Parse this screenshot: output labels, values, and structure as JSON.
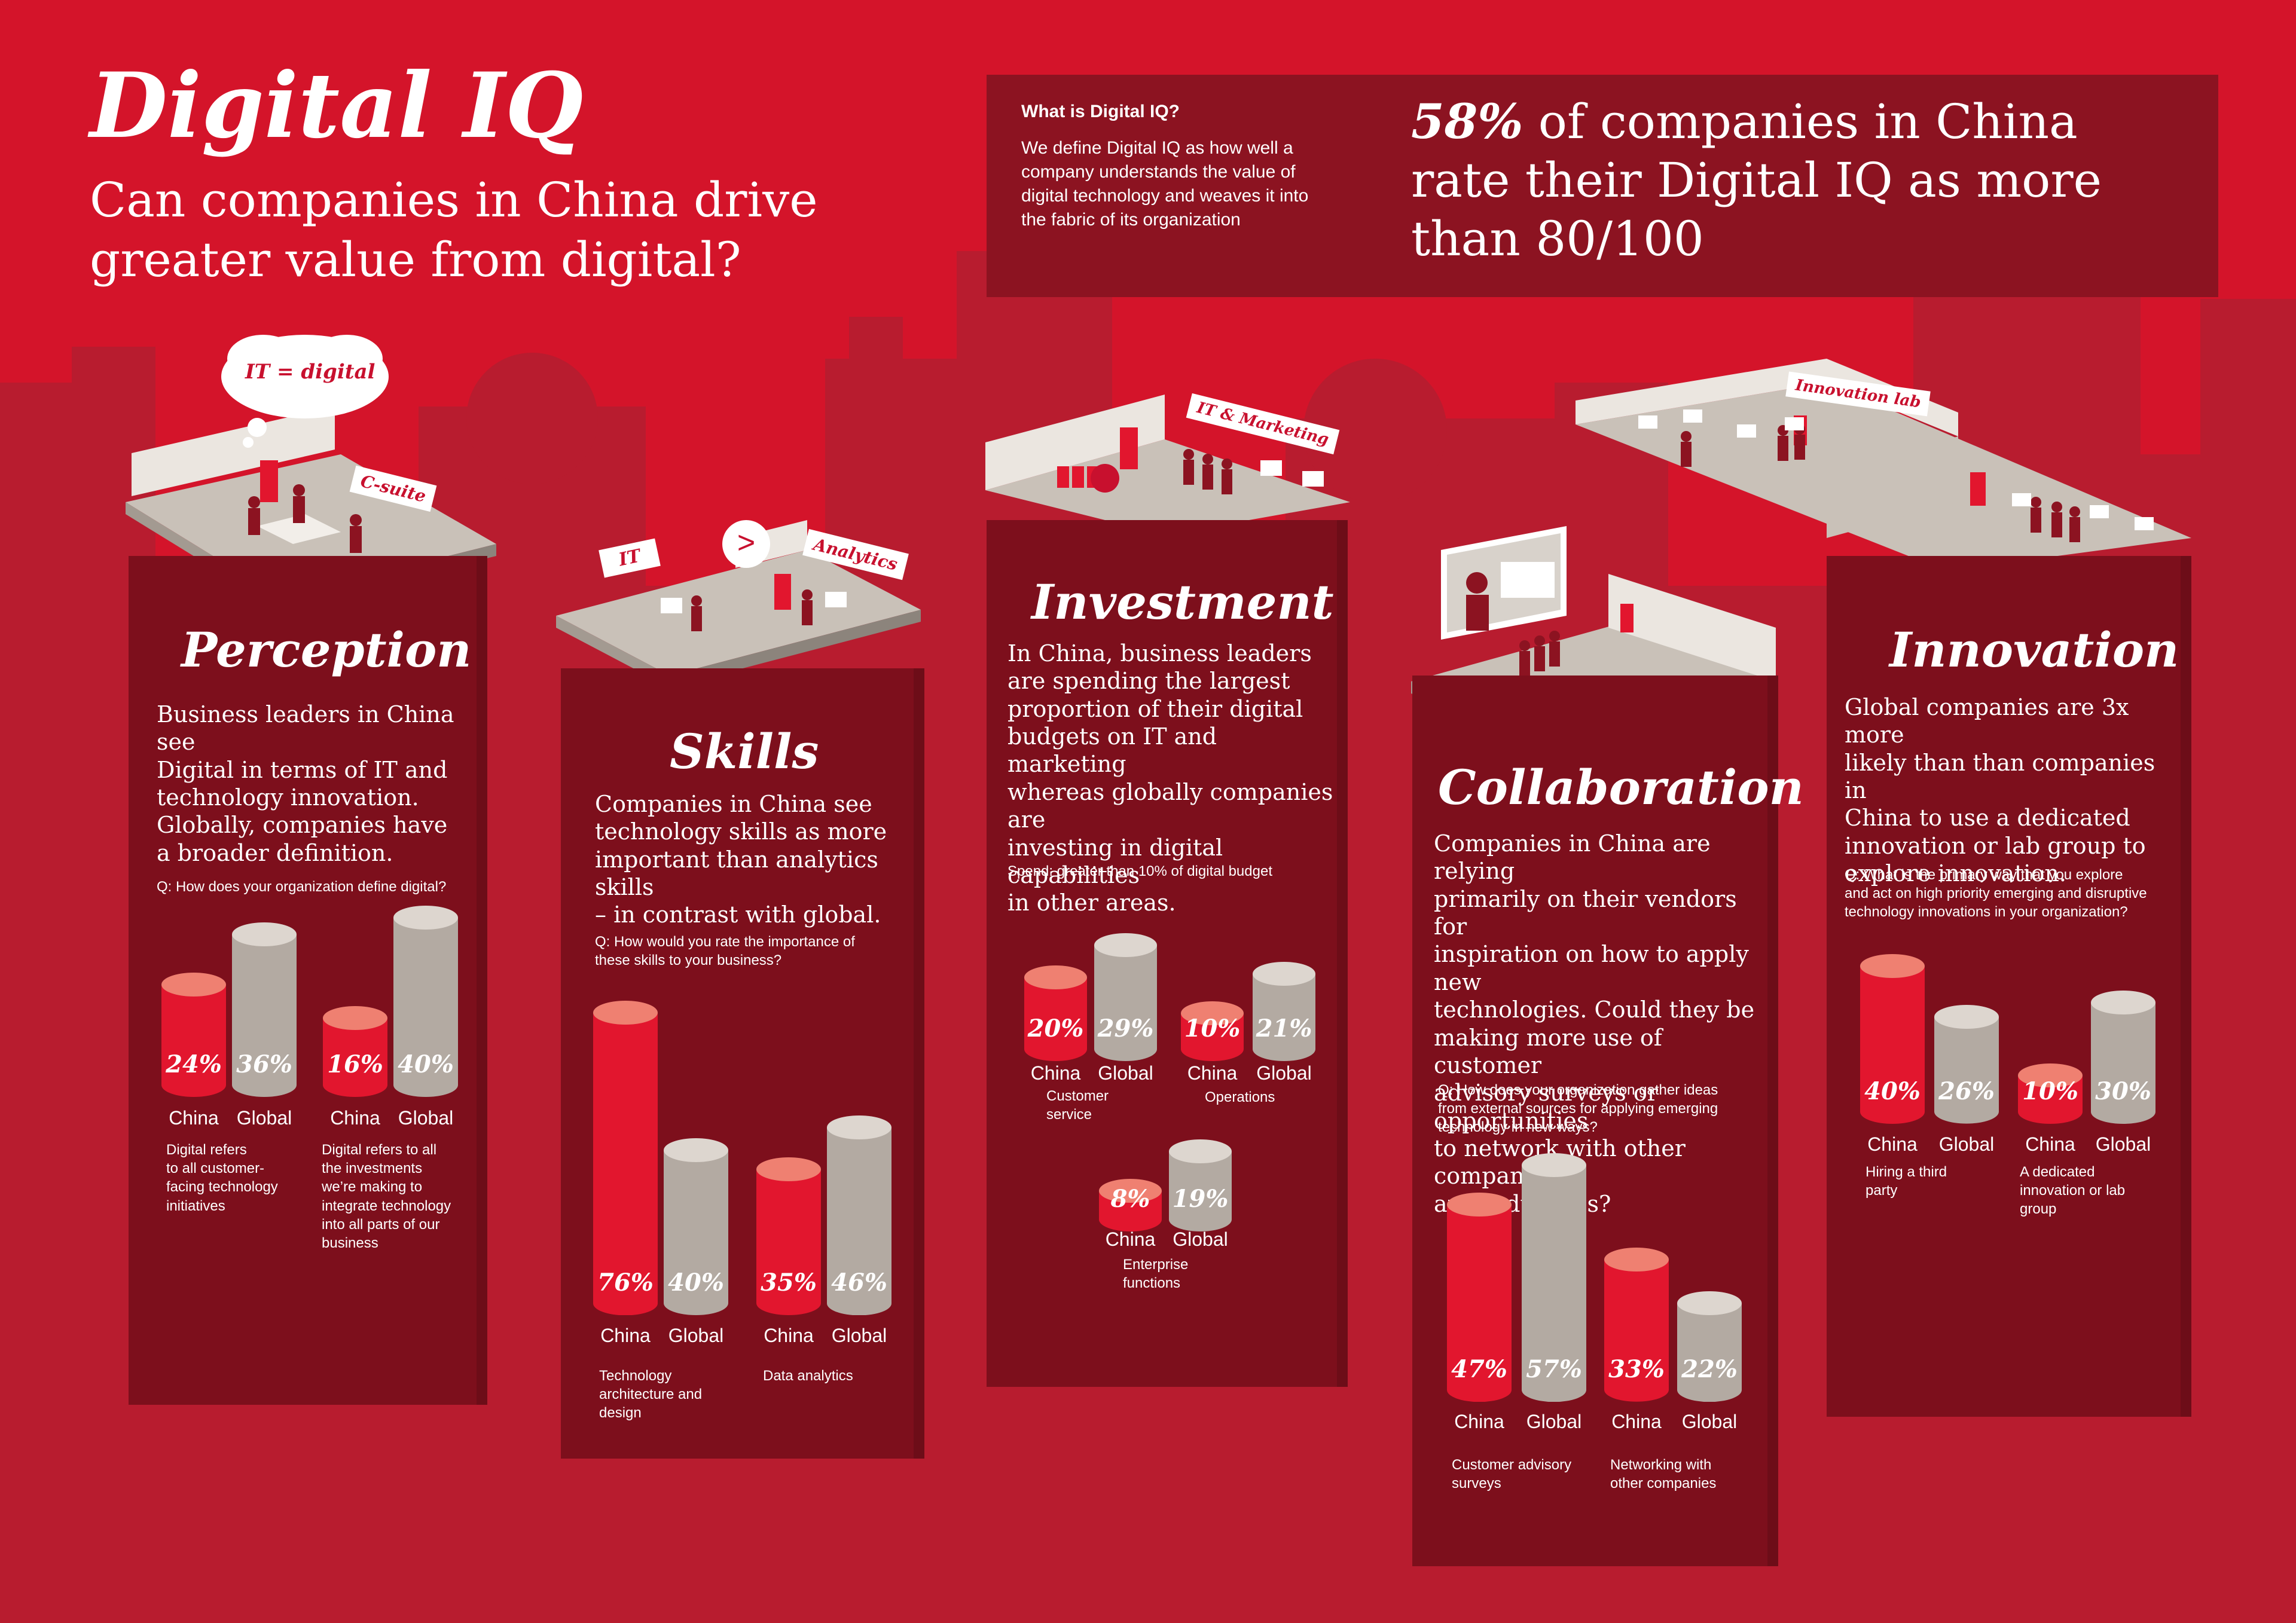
{
  "header": {
    "title": "Digital IQ",
    "subtitle_line1": "Can companies in China drive",
    "subtitle_line2": "greater value from digital?"
  },
  "definition": {
    "heading": "What is Digital IQ?",
    "line1": "We define Digital IQ as how well a",
    "line2": "company understands the value of",
    "line3": "digital technology and weaves it into",
    "line4": "the fabric of its organization"
  },
  "stat": {
    "number": "58%",
    "line1_rest": " of companies in China",
    "line2": "rate their Digital IQ as more",
    "line3": "than 80/100"
  },
  "colors": {
    "background": "#d4142a",
    "china": "#e2162e",
    "china_top": "#ef8071",
    "global": "#b3aaa2",
    "global_top": "#ddd6cf",
    "panel": "#7d0f1c",
    "dark_box": "#8c1321"
  },
  "illustrations": {
    "perception_bubble": "IT = digital",
    "perception_sign": "C-suite",
    "skills_sign_it": "IT",
    "skills_sign_gt": ">",
    "skills_sign_analytics": "Analytics",
    "investment_sign": "IT & Marketing",
    "innovation_sign": "Innovation lab"
  },
  "sections": {
    "perception": {
      "title": "Perception",
      "body": [
        "Business leaders in China see",
        "Digital in terms of IT and",
        "technology innovation.",
        "Globally, companies have",
        "a broader definition."
      ],
      "question": "Q: How does your organization define digital?",
      "caption1": [
        "Digital refers",
        "to all customer-",
        "facing technology",
        "initiatives"
      ],
      "caption2": [
        "Digital refers to all",
        "the investments",
        "we’re making to",
        "integrate technology",
        "into all parts of our",
        "business"
      ]
    },
    "skills": {
      "title": "Skills",
      "body": [
        "Companies in China see",
        "technology skills as more",
        "important than analytics skills",
        "– in contrast with global."
      ],
      "question": [
        "Q: How would you rate the importance of",
        "these skills to your business?"
      ],
      "caption1": [
        "Technology",
        "architecture and",
        "design"
      ],
      "caption2": [
        "Data analytics"
      ]
    },
    "investment": {
      "title": "Investment",
      "body": [
        "In China, business leaders",
        "are spending the largest",
        "proportion of their digital",
        "budgets on IT and marketing",
        "whereas globally companies are",
        "investing in digital capabilities",
        "in other areas."
      ],
      "question": "Spend: greater than 10% of digital budget",
      "caption1": [
        "Customer",
        "service"
      ],
      "caption2": [
        "Operations"
      ],
      "caption3": [
        "Enterprise",
        "functions"
      ]
    },
    "collaboration": {
      "title": "Collaboration",
      "body": [
        "Companies in China are relying",
        "primarily on their vendors for",
        "inspiration on how to apply new",
        "technologies. Could they be",
        "making more use of customer",
        "advisory surveys or opportunities",
        "to network with other companies",
        "and industries?"
      ],
      "question": [
        "Q: How does your organization gather ideas",
        "from external sources for applying emerging",
        "technology in new ways?"
      ],
      "caption1": [
        "Customer advisory",
        "surveys"
      ],
      "caption2": [
        "Networking with",
        "other companies"
      ]
    },
    "innovation": {
      "title": "Innovation",
      "body": [
        "Global companies are 3x more",
        "likely than than companies in",
        "China to use a dedicated",
        "innovation or lab group to",
        "explore innovation."
      ],
      "question": [
        "Q: What is the primary way that you explore",
        "and act on high priority emerging and disruptive",
        "technology innovations in your organization?"
      ],
      "caption1": [
        "Hiring a third",
        "party"
      ],
      "caption2": [
        "A dedicated",
        "innovation or lab",
        "group"
      ]
    }
  },
  "chart_data": [
    {
      "type": "bar",
      "group": "Perception",
      "categories": [
        "Digital refers to all customer-facing technology initiatives",
        "Digital refers to all the investments we’re making to integrate technology into all parts of our business"
      ],
      "series": [
        {
          "name": "China",
          "values": [
            24,
            16
          ],
          "labels": [
            "24%",
            "16%"
          ]
        },
        {
          "name": "Global",
          "values": [
            36,
            40
          ],
          "labels": [
            "36%",
            "40%"
          ]
        }
      ]
    },
    {
      "type": "bar",
      "group": "Skills",
      "categories": [
        "Technology architecture and design",
        "Data analytics"
      ],
      "series": [
        {
          "name": "China",
          "values": [
            76,
            35
          ],
          "labels": [
            "76%",
            "35%"
          ]
        },
        {
          "name": "Global",
          "values": [
            40,
            46
          ],
          "labels": [
            "40%",
            "46%"
          ]
        }
      ]
    },
    {
      "type": "bar",
      "group": "Investment",
      "categories": [
        "Customer service",
        "Operations",
        "Enterprise functions"
      ],
      "series": [
        {
          "name": "China",
          "values": [
            20,
            10,
            8
          ],
          "labels": [
            "20%",
            "10%",
            "8%"
          ]
        },
        {
          "name": "Global",
          "values": [
            29,
            21,
            19
          ],
          "labels": [
            "29%",
            "21%",
            "19%"
          ]
        }
      ]
    },
    {
      "type": "bar",
      "group": "Collaboration",
      "categories": [
        "Customer advisory surveys",
        "Networking with other companies"
      ],
      "series": [
        {
          "name": "China",
          "values": [
            47,
            33
          ],
          "labels": [
            "47%",
            "33%"
          ]
        },
        {
          "name": "Global",
          "values": [
            57,
            22
          ],
          "labels": [
            "57%",
            "22%"
          ]
        }
      ]
    },
    {
      "type": "bar",
      "group": "Innovation",
      "categories": [
        "Hiring a third party",
        "A dedicated innovation or lab group"
      ],
      "series": [
        {
          "name": "China",
          "values": [
            40,
            10
          ],
          "labels": [
            "40%",
            "10%"
          ]
        },
        {
          "name": "Global",
          "values": [
            26,
            30
          ],
          "labels": [
            "26%",
            "30%"
          ]
        }
      ]
    }
  ]
}
